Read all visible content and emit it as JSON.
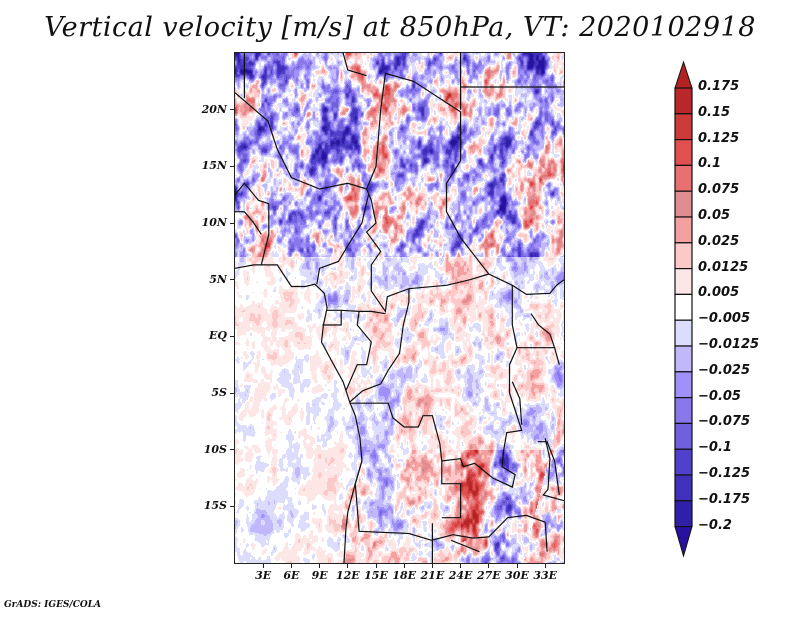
{
  "title": "Vertical velocity [m/s] at 850hPa, VT: 2020102918",
  "footer": "GrADS: IGES/COLA",
  "map": {
    "variable": "Vertical velocity",
    "units": "m/s",
    "level": "850hPa",
    "valid_time": "2020102918",
    "lat_range": [
      -20,
      25
    ],
    "lon_range": [
      0,
      35
    ],
    "lat_ticks": [
      {
        "value": 20,
        "label": "20N"
      },
      {
        "value": 15,
        "label": "15N"
      },
      {
        "value": 10,
        "label": "10N"
      },
      {
        "value": 5,
        "label": "5N"
      },
      {
        "value": 0,
        "label": "EQ"
      },
      {
        "value": -5,
        "label": "5S"
      },
      {
        "value": -10,
        "label": "10S"
      },
      {
        "value": -15,
        "label": "15S"
      }
    ],
    "lon_ticks": [
      {
        "value": 3,
        "label": "3E"
      },
      {
        "value": 6,
        "label": "6E"
      },
      {
        "value": 9,
        "label": "9E"
      },
      {
        "value": 12,
        "label": "12E"
      },
      {
        "value": 15,
        "label": "15E"
      },
      {
        "value": 18,
        "label": "18E"
      },
      {
        "value": 21,
        "label": "21E"
      },
      {
        "value": 24,
        "label": "24E"
      },
      {
        "value": 27,
        "label": "27E"
      },
      {
        "value": 30,
        "label": "30E"
      },
      {
        "value": 33,
        "label": "33E"
      }
    ]
  },
  "colorbar": {
    "labels": [
      "0.175",
      "0.15",
      "0.125",
      "0.1",
      "0.075",
      "0.05",
      "0.025",
      "0.0125",
      "0.005",
      "-0.005",
      "-0.0125",
      "-0.025",
      "-0.05",
      "-0.075",
      "-0.1",
      "-0.125",
      "-0.175",
      "-0.2"
    ],
    "colors": [
      "#b22222",
      "#b8282a",
      "#cc3a3a",
      "#e05050",
      "#e87070",
      "#e08c90",
      "#f5a0a0",
      "#fcc8c8",
      "#fde6e6",
      "#ffffff",
      "#dcdcfc",
      "#c0b8fa",
      "#a090fa",
      "#8878ec",
      "#7060dc",
      "#5040cc",
      "#4030bc",
      "#3020a8",
      "#2810a0"
    ],
    "top_arrow_color": "#b22222",
    "bottom_arrow_color": "#2810a0"
  }
}
